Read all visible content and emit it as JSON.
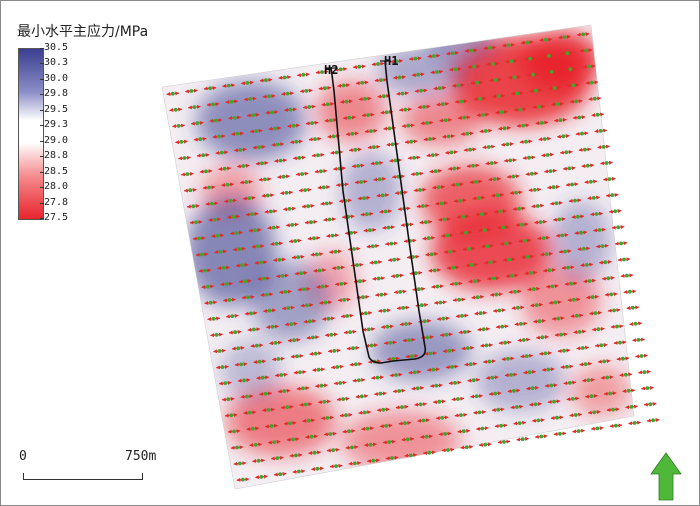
{
  "legend": {
    "title": "最小水平主应力/MPa",
    "ticks": [
      "30.5",
      "30.3",
      "30.0",
      "29.8",
      "29.5",
      "29.3",
      "29.0",
      "28.8",
      "28.5",
      "28.0",
      "27.8",
      "27.5"
    ],
    "color_high": "#3b3f8f",
    "color_mid": "#ffffff",
    "color_low": "#e8232b"
  },
  "wells": [
    {
      "label": "H1"
    },
    {
      "label": "H2"
    }
  ],
  "scale_bar": {
    "start": "0",
    "end": "750m"
  },
  "north_arrow": {
    "icon": "north-arrow-icon",
    "color": "#4fb83a"
  },
  "vector_glyph": {
    "icon": "stress-direction-arrow-icon",
    "arrow_color": "#e32b2b",
    "dot_color": "#3aa82f",
    "orientation": "east-west"
  }
}
